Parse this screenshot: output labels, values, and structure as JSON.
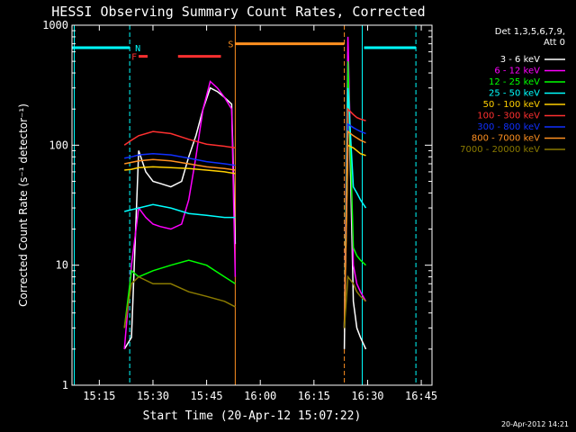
{
  "chart_data": {
    "type": "line",
    "title": "HESSI Observing Summary Count Rates, Corrected",
    "xlabel": "Start Time (20-Apr-12 15:07:22)",
    "ylabel": "Corrected Count Rate (s⁻¹ detector⁻¹)",
    "y_scale": "log",
    "xlim": [
      "15:07:22",
      "16:48:00"
    ],
    "ylim": [
      1,
      1000
    ],
    "x_tick_labels": [
      "15:15",
      "15:30",
      "15:45",
      "16:00",
      "16:15",
      "16:30",
      "16:45"
    ],
    "y_tick_labels": [
      "1",
      "10",
      "100",
      "1000"
    ],
    "legend_header": [
      "Det 1,3,5,6,7,9,",
      "Att 0"
    ],
    "legend_position": "right-outside",
    "footer_timestamp": "20-Apr-2012 14:21",
    "series": [
      {
        "name": "3 - 6 keV",
        "color": "#ffffff",
        "x": [
          "15:22",
          "15:24",
          "15:26",
          "15:28",
          "15:30",
          "15:32",
          "15:35",
          "15:38",
          "15:40",
          "15:42",
          "15:44",
          "15:46",
          "15:48",
          "15:50",
          "15:52",
          "15:53"
        ],
        "y": [
          2,
          2.5,
          90,
          60,
          50,
          48,
          45,
          50,
          80,
          120,
          200,
          300,
          280,
          250,
          220,
          15
        ]
      },
      {
        "name": "6 - 12 keV",
        "color": "#ff00ff",
        "x": [
          "15:22",
          "15:24",
          "15:26",
          "15:28",
          "15:30",
          "15:32",
          "15:35",
          "15:38",
          "15:40",
          "15:42",
          "15:44",
          "15:46",
          "15:48",
          "15:50",
          "15:52",
          "15:53"
        ],
        "y": [
          2,
          10,
          30,
          25,
          22,
          21,
          20,
          22,
          35,
          80,
          200,
          340,
          300,
          250,
          200,
          8
        ]
      },
      {
        "name": "12 - 25 keV",
        "color": "#00ff00",
        "x": [
          "15:22",
          "15:24",
          "15:26",
          "15:30",
          "15:35",
          "15:40",
          "15:45",
          "15:50",
          "15:53"
        ],
        "y": [
          3,
          9,
          8,
          9,
          10,
          11,
          10,
          8,
          7
        ]
      },
      {
        "name": "25 - 50 keV",
        "color": "#00ffff",
        "x": [
          "15:22",
          "15:24",
          "15:26",
          "15:30",
          "15:35",
          "15:40",
          "15:45",
          "15:50",
          "15:53"
        ],
        "y": [
          28,
          29,
          30,
          32,
          30,
          27,
          26,
          25,
          25
        ]
      },
      {
        "name": "50 - 100 keV",
        "color": "#ffd000",
        "x": [
          "15:22",
          "15:24",
          "15:26",
          "15:30",
          "15:35",
          "15:40",
          "15:45",
          "15:50",
          "15:53"
        ],
        "y": [
          62,
          63,
          65,
          66,
          65,
          64,
          62,
          60,
          58
        ]
      },
      {
        "name": "100 - 300 keV",
        "color": "#ff3030",
        "x": [
          "15:22",
          "15:24",
          "15:26",
          "15:30",
          "15:35",
          "15:40",
          "15:45",
          "15:50",
          "15:53"
        ],
        "y": [
          100,
          110,
          120,
          130,
          125,
          112,
          102,
          98,
          95
        ]
      },
      {
        "name": "300 - 800 keV",
        "color": "#1030ff",
        "x": [
          "15:22",
          "15:24",
          "15:26",
          "15:30",
          "15:35",
          "15:40",
          "15:45",
          "15:50",
          "15:53"
        ],
        "y": [
          78,
          80,
          83,
          85,
          83,
          78,
          73,
          70,
          68
        ]
      },
      {
        "name": "800 - 7000 keV",
        "color": "#ff9020",
        "x": [
          "15:22",
          "15:24",
          "15:26",
          "15:30",
          "15:35",
          "15:40",
          "15:45",
          "15:50",
          "15:53"
        ],
        "y": [
          70,
          72,
          74,
          76,
          74,
          70,
          66,
          64,
          62
        ]
      },
      {
        "name": "7000 - 20000 keV",
        "color": "#8a7a00",
        "x": [
          "15:22",
          "15:24",
          "15:26",
          "15:30",
          "15:35",
          "15:40",
          "15:45",
          "15:50",
          "15:53"
        ],
        "y": [
          3,
          7,
          8,
          7,
          7,
          6,
          5.5,
          5,
          4.5
        ]
      }
    ],
    "late_segment": {
      "x": [
        "16:23:30",
        "16:24:30",
        "16:26",
        "16:27",
        "16:28",
        "16:29:30"
      ],
      "values": {
        "3 - 6 keV": [
          2,
          600,
          5,
          3,
          2.5,
          2
        ],
        "6 - 12 keV": [
          3,
          800,
          10,
          7,
          6,
          5
        ],
        "12 - 25 keV": [
          3,
          500,
          14,
          12,
          11,
          10
        ],
        "25 - 50 keV": [
          3,
          300,
          45,
          40,
          35,
          30
        ],
        "50 - 100 keV": [
          3,
          100,
          95,
          90,
          85,
          82
        ],
        "100 - 300 keV": [
          3,
          200,
          180,
          170,
          165,
          160
        ],
        "300 - 800 keV": [
          3,
          150,
          140,
          135,
          130,
          125
        ],
        "800 - 7000 keV": [
          3,
          130,
          120,
          115,
          110,
          105
        ],
        "7000 - 20000 keV": [
          3,
          8,
          7,
          6,
          5.5,
          5
        ]
      }
    },
    "flag_bars": [
      {
        "label": "F",
        "color": "#ff3030",
        "segments": [
          [
            "15:26",
            "15:28:30"
          ],
          [
            "15:37",
            "15:49"
          ]
        ],
        "y": 550
      },
      {
        "label": "N",
        "color": "#00ffff",
        "segments": [],
        "y": 650
      },
      {
        "label": "S",
        "color": "#ff9020",
        "segments": [
          [
            "15:53",
            "16:23:30"
          ]
        ],
        "y": 700
      },
      {
        "label": "",
        "color": "#00ffff",
        "segments": [
          [
            "15:07:22",
            "15:23:30"
          ],
          [
            "16:29",
            "16:43:30"
          ]
        ],
        "y": 650
      }
    ],
    "vertical_markers": [
      {
        "x": "15:08",
        "color": "#00ffff",
        "dashed": false
      },
      {
        "x": "15:23:30",
        "color": "#00ffff",
        "dashed": true
      },
      {
        "x": "15:53",
        "color": "#ff9020",
        "dashed": false
      },
      {
        "x": "16:23:30",
        "color": "#ff9020",
        "dashed": true
      },
      {
        "x": "16:28:30",
        "color": "#00ffff",
        "dashed": false
      },
      {
        "x": "16:43:30",
        "color": "#00ffff",
        "dashed": true
      }
    ]
  }
}
